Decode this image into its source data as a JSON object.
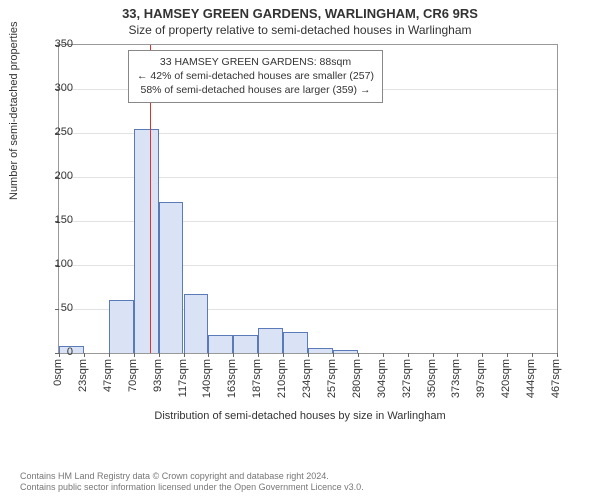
{
  "title": "33, HAMSEY GREEN GARDENS, WARLINGHAM, CR6 9RS",
  "subtitle": "Size of property relative to semi-detached houses in Warlingham",
  "chart": {
    "type": "histogram",
    "ylabel": "Number of semi-detached properties",
    "xlabel": "Distribution of semi-detached houses by size in Warlingham",
    "ylim": [
      0,
      350
    ],
    "ytick_step": 50,
    "xlim": [
      0,
      480
    ],
    "xtick_categories": [
      "0sqm",
      "23sqm",
      "47sqm",
      "70sqm",
      "93sqm",
      "117sqm",
      "140sqm",
      "163sqm",
      "187sqm",
      "210sqm",
      "234sqm",
      "257sqm",
      "280sqm",
      "304sqm",
      "327sqm",
      "350sqm",
      "373sqm",
      "397sqm",
      "420sqm",
      "444sqm",
      "467sqm"
    ],
    "bar_fill": "#d9e3f5",
    "bar_stroke": "#5b7bb8",
    "background_color": "#ffffff",
    "grid_color": "#e2e2e2",
    "axis_color": "#999999",
    "label_fontsize": 11,
    "title_fontsize": 13,
    "values": [
      8,
      0,
      60,
      255,
      172,
      67,
      20,
      20,
      28,
      24,
      6,
      3,
      0,
      0,
      0,
      0,
      0,
      0,
      0,
      0
    ],
    "marker_line": {
      "x": 88,
      "color": "#e03030"
    }
  },
  "annotation": {
    "lines": [
      "33 HAMSEY GREEN GARDENS: 88sqm",
      "← 42% of semi-detached houses are smaller (257)",
      "58% of semi-detached houses are larger (359) →"
    ]
  },
  "footer": {
    "line1": "Contains HM Land Registry data © Crown copyright and database right 2024.",
    "line2": "Contains public sector information licensed under the Open Government Licence v3.0."
  }
}
